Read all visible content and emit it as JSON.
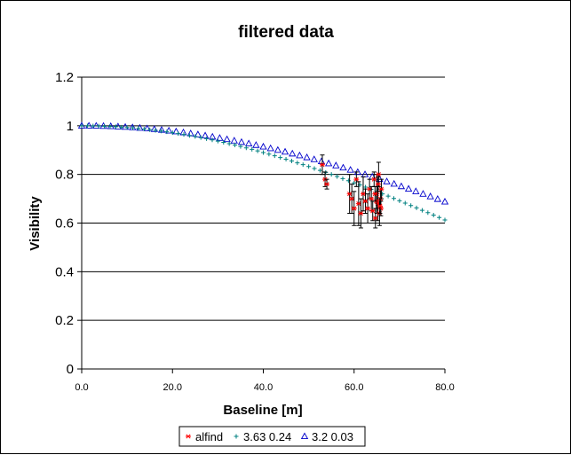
{
  "chart_data": {
    "type": "scatter",
    "title": "filtered data",
    "xlabel": "Baseline [m]",
    "ylabel": "Visibility",
    "xlim": [
      0,
      80
    ],
    "ylim": [
      0,
      1.2
    ],
    "x_ticks": [
      {
        "value": 0,
        "label": "0.0"
      },
      {
        "value": 20,
        "label": "20.0"
      },
      {
        "value": 40,
        "label": "40.0"
      },
      {
        "value": 60,
        "label": "60.0"
      },
      {
        "value": 80,
        "label": "80.0"
      }
    ],
    "y_ticks": [
      {
        "value": 0,
        "label": "0"
      },
      {
        "value": 0.2,
        "label": "0.2"
      },
      {
        "value": 0.4,
        "label": "0.4"
      },
      {
        "value": 0.6,
        "label": "0.6"
      },
      {
        "value": 0.8,
        "label": "0.8"
      },
      {
        "value": 1,
        "label": "1"
      },
      {
        "value": 1.2,
        "label": "1.2"
      }
    ],
    "grid": "horizontal",
    "legend_position": "bottom",
    "series": [
      {
        "name": "alfind",
        "marker": "star",
        "color": "#ff0000",
        "errorbar_color": "#000000",
        "points": [
          {
            "x": 53.0,
            "y": 0.84,
            "err": 0.04
          },
          {
            "x": 53.6,
            "y": 0.78,
            "err": 0.03
          },
          {
            "x": 54.0,
            "y": 0.76,
            "err": 0.02
          },
          {
            "x": 59.0,
            "y": 0.72,
            "err": 0.08
          },
          {
            "x": 59.5,
            "y": 0.7,
            "err": 0.06
          },
          {
            "x": 60.0,
            "y": 0.66,
            "err": 0.07
          },
          {
            "x": 60.5,
            "y": 0.78,
            "err": 0.03
          },
          {
            "x": 61.0,
            "y": 0.68,
            "err": 0.09
          },
          {
            "x": 61.5,
            "y": 0.64,
            "err": 0.06
          },
          {
            "x": 62.0,
            "y": 0.72,
            "err": 0.07
          },
          {
            "x": 62.5,
            "y": 0.69,
            "err": 0.05
          },
          {
            "x": 63.0,
            "y": 0.66,
            "err": 0.06
          },
          {
            "x": 63.4,
            "y": 0.74,
            "err": 0.04
          },
          {
            "x": 63.8,
            "y": 0.7,
            "err": 0.05
          },
          {
            "x": 64.1,
            "y": 0.65,
            "err": 0.04
          },
          {
            "x": 64.4,
            "y": 0.78,
            "err": 0.03
          },
          {
            "x": 64.7,
            "y": 0.62,
            "err": 0.04
          },
          {
            "x": 65.0,
            "y": 0.72,
            "err": 0.08
          },
          {
            "x": 65.2,
            "y": 0.68,
            "err": 0.07
          },
          {
            "x": 65.4,
            "y": 0.8,
            "err": 0.05
          },
          {
            "x": 65.6,
            "y": 0.64,
            "err": 0.05
          },
          {
            "x": 65.8,
            "y": 0.7,
            "err": 0.04
          },
          {
            "x": 65.9,
            "y": 0.66,
            "err": 0.03
          },
          {
            "x": 66.0,
            "y": 0.74,
            "err": 0.04
          },
          {
            "x": 65.3,
            "y": 0.76,
            "err": 0.03
          },
          {
            "x": 64.9,
            "y": 0.69,
            "err": 0.03
          },
          {
            "x": 64.6,
            "y": 0.72,
            "err": 0.03
          },
          {
            "x": 65.7,
            "y": 0.67,
            "err": 0.03
          }
        ]
      },
      {
        "name": "3.63 0.24",
        "marker": "plus",
        "color": "#008080",
        "model": {
          "diameter": 3.63,
          "lambda_um": 2.2,
          "scale": 0.907
        },
        "x_start": 0,
        "x_end": 80,
        "x_step": 1.25
      },
      {
        "name": "3.2 0.03",
        "marker": "triangle",
        "color": "#0000cc",
        "model": {
          "diameter": 3.2,
          "lambda_um": 2.2,
          "scale": 0.907
        },
        "x_start": 0,
        "x_end": 80,
        "x_step": 1.6
      }
    ]
  }
}
